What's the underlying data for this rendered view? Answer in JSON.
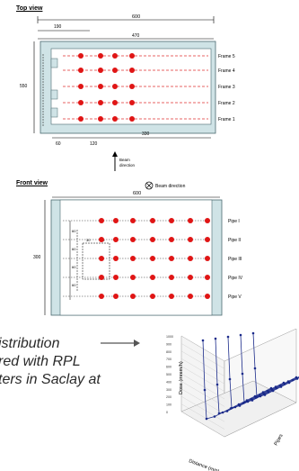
{
  "top_view": {
    "title": "Top view",
    "dim_top_left": "190",
    "dim_top_total": "600",
    "dim_inner": "470",
    "dim_left_height": "550",
    "dim_bottom_left": "60",
    "dim_bottom_mid": "120",
    "dim_bottom_right": "330",
    "frames": [
      "Frame 5",
      "Frame 4",
      "Frame 3",
      "Frame 2",
      "Frame 1"
    ],
    "beam_label": "Beam\ndirection"
  },
  "front_view": {
    "title": "Front view",
    "beam_label": "Beam direction",
    "dim_top": "600",
    "dim_left": "300",
    "pipes": [
      "Pipe I",
      "Pipe II",
      "Pipe III",
      "Pipe IV",
      "Pipe V"
    ],
    "small_dims": [
      "60",
      "60",
      "60",
      "60",
      "30",
      "20"
    ]
  },
  "caption": {
    "line1": "istribution",
    "line2": "red  with RPL",
    "line3": "ters  in Saclay at"
  },
  "plot": {
    "ylabel": "Dose (mrem/h)",
    "xlabel": "Distance (mm)",
    "zlabel": "Pipes",
    "yticks": [
      "1000",
      "900",
      "800",
      "700",
      "600",
      "500",
      "400",
      "300",
      "200",
      "100",
      "0"
    ],
    "series_color": "#1a2a8a"
  },
  "colors": {
    "dot": "#e01515",
    "wall": "#cfe3e6",
    "wall_stroke": "#4a6a70",
    "dash": "#e03030"
  }
}
